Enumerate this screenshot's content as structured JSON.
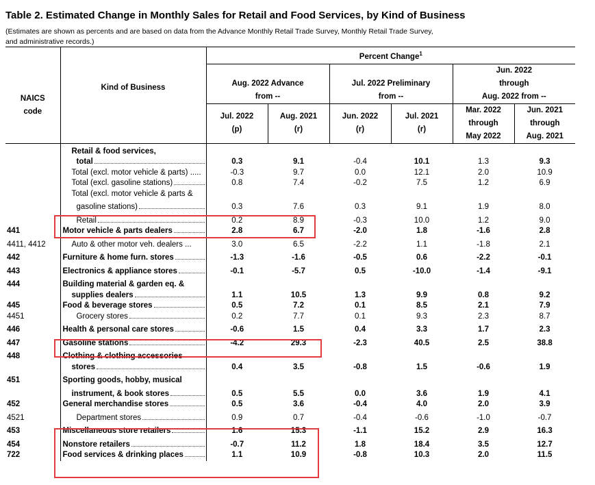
{
  "title": "Table 2.  Estimated Change in Monthly Sales for Retail and Food Services, by Kind of Business",
  "note_line1": "(Estimates are shown as percents and are based on data from the Advance Monthly Retail Trade Survey,  Monthly Retail Trade Survey,",
  "note_line2": "and administrative records.)",
  "header": {
    "naics": "NAICS",
    "code": "code",
    "kind": "Kind of Business",
    "pct_change": "Percent Change",
    "pct_sup": "1",
    "g1_a": "Aug. 2022 Advance",
    "g1_b": "from --",
    "g2_a": "Jul. 2022 Preliminary",
    "g2_b": "from --",
    "g3_a": "Jun. 2022",
    "g3_b": "through",
    "g3_c": "Aug. 2022 from --",
    "c1_a": "Jul. 2022",
    "c1_b": "(p)",
    "c2_a": "Aug. 2021",
    "c2_b": "(r)",
    "c3_a": "Jun. 2022",
    "c3_b": "(r)",
    "c4_a": "Jul. 2021",
    "c4_b": "(r)",
    "c5_a": "Mar. 2022",
    "c5_b": "through",
    "c5_c": "May 2022",
    "c6_a": "Jun. 2021",
    "c6_b": "through",
    "c6_c": "Aug. 2021"
  },
  "rows": {
    "r1": {
      "code": "",
      "l1": "Retail & food services,"
    },
    "r2": {
      "code": "",
      "l1": "total",
      "v": [
        "0.3",
        "9.1",
        "-0.4",
        "10.1",
        "1.3",
        "9.3"
      ]
    },
    "r3": {
      "code": "",
      "l1": "Total (excl. motor vehicle & parts) .....",
      "v": [
        "-0.3",
        "9.7",
        "0.0",
        "12.1",
        "2.0",
        "10.9"
      ]
    },
    "r4": {
      "code": "",
      "l1": "Total (excl. gasoline stations)",
      "v": [
        "0.8",
        "7.4",
        "-0.2",
        "7.5",
        "1.2",
        "6.9"
      ]
    },
    "r5": {
      "code": "",
      "l1": "Total (excl. motor vehicle & parts &"
    },
    "r6": {
      "code": "",
      "l1": "gasoline stations)",
      "v": [
        "0.3",
        "7.6",
        "0.3",
        "9.1",
        "1.9",
        "8.0"
      ]
    },
    "r7": {
      "code": "",
      "l1": "Retail",
      "v": [
        "0.2",
        "8.9",
        "-0.3",
        "10.0",
        "1.2",
        "9.0"
      ]
    },
    "r8": {
      "code": "441",
      "l1": "Motor vehicle & parts dealers",
      "v": [
        "2.8",
        "6.7",
        "-2.0",
        "1.8",
        "-1.6",
        "2.8"
      ]
    },
    "r9": {
      "code": "4411, 4412",
      "l1": "Auto & other motor veh. dealers ...",
      "v": [
        "3.0",
        "6.5",
        "-2.2",
        "1.1",
        "-1.8",
        "2.1"
      ]
    },
    "r10": {
      "code": "442",
      "l1": "Furniture & home furn. stores",
      "v": [
        "-1.3",
        "-1.6",
        "-0.5",
        "0.6",
        "-2.2",
        "-0.1"
      ]
    },
    "r11": {
      "code": "443",
      "l1": "Electronics & appliance stores",
      "v": [
        "-0.1",
        "-5.7",
        "0.5",
        "-10.0",
        "-1.4",
        "-9.1"
      ]
    },
    "r12": {
      "code": "444",
      "l1": "Building material & garden eq. &"
    },
    "r13": {
      "code": "",
      "l1": "supplies dealers",
      "v": [
        "1.1",
        "10.5",
        "1.3",
        "9.9",
        "0.8",
        "9.2"
      ]
    },
    "r14": {
      "code": "445",
      "l1": "Food & beverage stores",
      "v": [
        "0.5",
        "7.2",
        "0.1",
        "8.5",
        "2.1",
        "7.9"
      ]
    },
    "r15": {
      "code": "4451",
      "l1": "Grocery stores",
      "v": [
        "0.2",
        "7.7",
        "0.1",
        "9.3",
        "2.3",
        "8.7"
      ]
    },
    "r16": {
      "code": "446",
      "l1": "Health & personal care stores",
      "v": [
        "-0.6",
        "1.5",
        "0.4",
        "3.3",
        "1.7",
        "2.3"
      ]
    },
    "r17": {
      "code": "447",
      "l1": "Gasoline stations",
      "v": [
        "-4.2",
        "29.3",
        "-2.3",
        "40.5",
        "2.5",
        "38.8"
      ]
    },
    "r18": {
      "code": "448",
      "l1": "Clothing & clothing accessories"
    },
    "r19": {
      "code": "",
      "l1": "stores",
      "v": [
        "0.4",
        "3.5",
        "-0.8",
        "1.5",
        "-0.6",
        "1.9"
      ]
    },
    "r20": {
      "code": "451",
      "l1": "Sporting goods, hobby, musical"
    },
    "r21": {
      "code": "",
      "l1": "instrument, & book stores",
      "v": [
        "0.5",
        "5.5",
        "0.0",
        "3.6",
        "1.9",
        "4.1"
      ]
    },
    "r22": {
      "code": "452",
      "l1": "General merchandise stores",
      "v": [
        "0.5",
        "3.6",
        "-0.4",
        "4.0",
        "2.0",
        "3.9"
      ]
    },
    "r23": {
      "code": "4521",
      "l1": "Department stores",
      "v": [
        "0.9",
        "0.7",
        "-0.4",
        "-0.6",
        "-1.0",
        "-0.7"
      ]
    },
    "r24": {
      "code": "453",
      "l1": "Miscellaneous store retailers",
      "v": [
        "1.6",
        "15.3",
        "-1.1",
        "15.2",
        "2.9",
        "16.3"
      ]
    },
    "r25": {
      "code": "454",
      "l1": "Nonstore retailers",
      "v": [
        "-0.7",
        "11.2",
        "1.8",
        "18.4",
        "3.5",
        "12.7"
      ]
    },
    "r26": {
      "code": "722",
      "l1": "Food services & drinking places",
      "v": [
        "1.1",
        "10.9",
        "-0.8",
        "10.3",
        "2.0",
        "11.5"
      ]
    }
  },
  "highlight_color": "#e0393e"
}
